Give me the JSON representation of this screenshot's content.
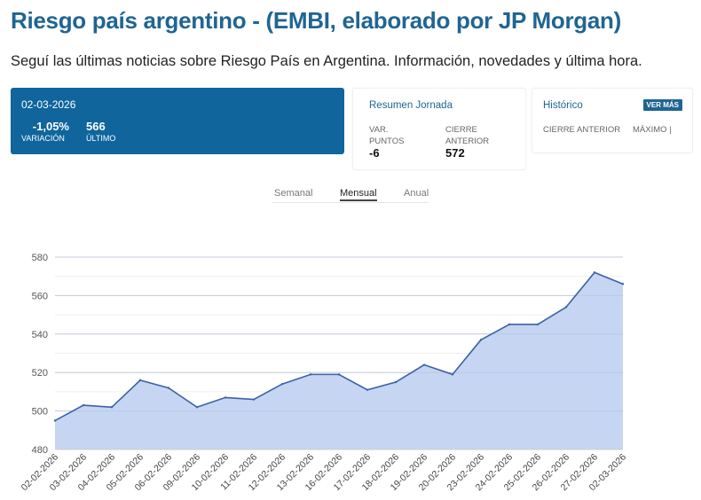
{
  "header": {
    "title": "Riesgo país argentino - (EMBI, elaborado por JP Morgan)",
    "subtitle": "Seguí las últimas noticias sobre Riesgo País en Argentina. Información, novedades y última hora."
  },
  "main_card": {
    "date": "02-03-2026",
    "variation_value": "-1,05%",
    "variation_label": "VARIACIÓN",
    "last_value": "566",
    "last_label": "ÚLTIMO",
    "color": "#0f659c"
  },
  "resumen": {
    "title": "Resumen Jornada",
    "var_label_1": "VAR.",
    "var_label_2": "PUNTOS",
    "var_value": "-6",
    "cierre_label_1": "CIERRE",
    "cierre_label_2": "ANTERIOR",
    "cierre_value": "572"
  },
  "historico": {
    "title": "Histórico",
    "button_label": "VER MÁS",
    "col1_label": "CIERRE ANTERIOR",
    "col2_label": "MÁXIMO |"
  },
  "tabs": [
    {
      "label": "Semanal",
      "active": false
    },
    {
      "label": "Mensual",
      "active": true
    },
    {
      "label": "Anual",
      "active": false
    }
  ],
  "chart_data": {
    "type": "area",
    "title": "",
    "xlabel": "",
    "ylabel": "",
    "ylim": [
      480,
      580
    ],
    "yticks": [
      480,
      500,
      520,
      540,
      560,
      580
    ],
    "grid": true,
    "x": [
      "02-02-2026",
      "03-02-2026",
      "04-02-2026",
      "05-02-2026",
      "06-02-2026",
      "09-02-2026",
      "10-02-2026",
      "11-02-2026",
      "12-02-2026",
      "13-02-2026",
      "16-02-2026",
      "17-02-2026",
      "18-02-2026",
      "19-02-2026",
      "20-02-2026",
      "23-02-2026",
      "24-02-2026",
      "25-02-2026",
      "26-02-2026",
      "27-02-2026",
      "02-03-2026"
    ],
    "series": [
      {
        "name": "Riesgo País",
        "values": [
          495,
          503,
          502,
          516,
          512,
          502,
          507,
          506,
          514,
          519,
          519,
          511,
          515,
          524,
          519,
          537,
          545,
          545,
          554,
          572,
          566
        ],
        "line_color": "#3a62a8",
        "fill_color": "#c3d3f0"
      }
    ]
  }
}
